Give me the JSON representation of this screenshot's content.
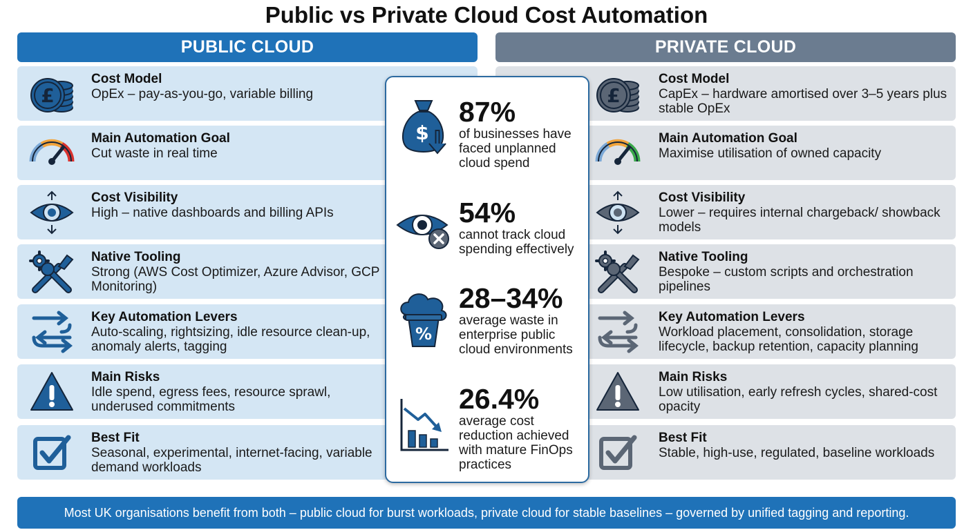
{
  "title": "Public vs Private Cloud Cost Automation",
  "public": {
    "header": "PUBLIC CLOUD",
    "rows": [
      {
        "label": "Cost Model",
        "desc": "OpEx – pay-as-you-go, variable billing",
        "icon": "pound-coins-icon"
      },
      {
        "label": "Main Automation Goal",
        "desc": "Cut waste in real time",
        "icon": "gauge-icon"
      },
      {
        "label": "Cost Visibility",
        "desc": "High – native dashboards and billing APIs",
        "icon": "eye-icon"
      },
      {
        "label": "Native Tooling",
        "desc": "Strong (AWS Cost Optimizer, Azure Advisor, GCP Monitoring)",
        "icon": "tools-icon"
      },
      {
        "label": "Key Automation Levers",
        "desc": "Auto-scaling, rightsizing, idle resource clean-up, anomaly alerts, tagging",
        "icon": "arrows-exchange-icon"
      },
      {
        "label": "Main Risks",
        "desc": "Idle spend, egress fees, resource sprawl, underused commitments",
        "icon": "warning-icon"
      },
      {
        "label": "Best Fit",
        "desc": "Seasonal, experimental, internet-facing, variable demand workloads",
        "icon": "checkbox-icon"
      }
    ]
  },
  "private": {
    "header": "PRIVATE CLOUD",
    "rows": [
      {
        "label": "Cost Model",
        "desc": "CapEx – hardware amortised over 3–5 years plus stable OpEx",
        "icon": "pound-coins-icon"
      },
      {
        "label": "Main Automation Goal",
        "desc": "Maximise utilisation of owned capacity",
        "icon": "gauge-icon"
      },
      {
        "label": "Cost Visibility",
        "desc": "Lower – requires internal chargeback/ showback models",
        "icon": "eye-icon"
      },
      {
        "label": "Native Tooling",
        "desc": "Bespoke – custom scripts and orchestration pipelines",
        "icon": "tools-icon"
      },
      {
        "label": "Key Automation Levers",
        "desc": "Workload placement, consolidation, storage lifecycle, backup retention, capacity planning",
        "icon": "arrows-exchange-icon"
      },
      {
        "label": "Main Risks",
        "desc": "Low utilisation, early refresh cycles, shared-cost opacity",
        "icon": "warning-icon"
      },
      {
        "label": "Best Fit",
        "desc": "Stable, high-use, regulated, baseline workloads",
        "icon": "checkbox-icon"
      }
    ]
  },
  "stats": [
    {
      "value": "87%",
      "desc": "of businesses have faced unplanned cloud spend",
      "icon": "money-bag-down-icon"
    },
    {
      "value": "54%",
      "desc": "cannot track cloud spending effectively",
      "icon": "eye-crossed-icon"
    },
    {
      "value": "28–34%",
      "desc": "average waste in enterprise public cloud environments",
      "icon": "cloud-bin-percent-icon"
    },
    {
      "value": "26.4%",
      "desc": "average cost reduction achieved with mature FinOps practices",
      "icon": "declining-chart-icon"
    }
  ],
  "footer": "Most UK organisations benefit from both – public cloud for burst workloads, private cloud for stable baselines – governed by unified tagging and reporting.",
  "colors": {
    "public_accent": "#1f72b8",
    "private_accent": "#6b7c90",
    "public_row_bg": "#d4e6f4",
    "private_row_bg": "#dde1e6",
    "icon_blue": "#1f5f99",
    "icon_gray": "#5b6675"
  }
}
